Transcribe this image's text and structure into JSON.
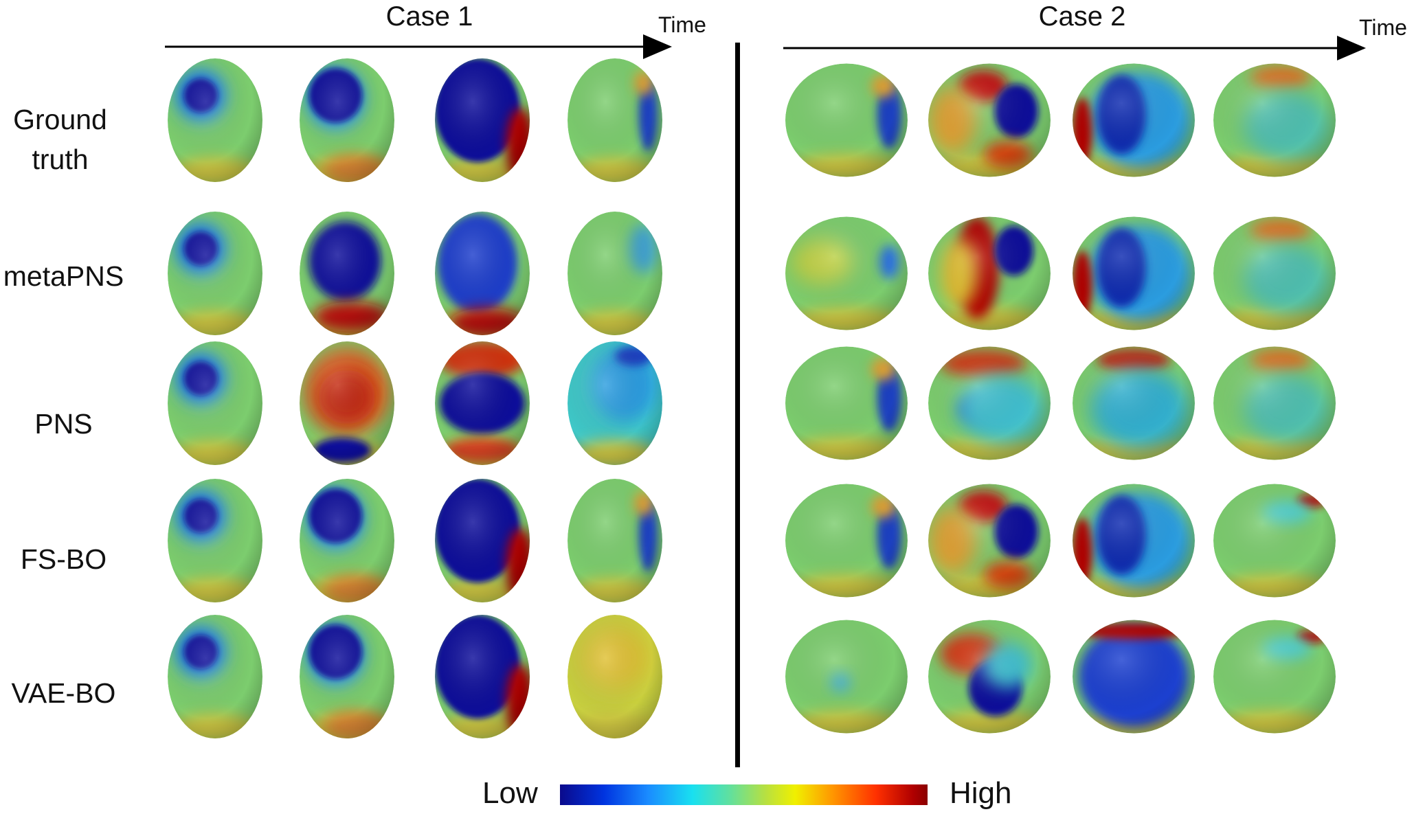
{
  "cases": [
    {
      "title": "Case 1",
      "time_label": "Time"
    },
    {
      "title": "Case 2",
      "time_label": "Time"
    }
  ],
  "rows": [
    {
      "label": "Ground truth"
    },
    {
      "label": "metaPNS"
    },
    {
      "label": "PNS"
    },
    {
      "label": "FS-BO"
    },
    {
      "label": "VAE-BO"
    }
  ],
  "colorbar": {
    "low_label": "Low",
    "high_label": "High",
    "colors": [
      "#0a0a8c",
      "#0034e0",
      "#1a8cff",
      "#19e0f0",
      "#5fe0a0",
      "#b8e040",
      "#f0f000",
      "#ff9800",
      "#ff3000",
      "#8a0000"
    ]
  },
  "heart_maps": {
    "case1": [
      [
        "ul-blob",
        "big-ul",
        "full-dark",
        "right-edge"
      ],
      [
        "ul-blob",
        "big-full",
        "full-mid",
        "faint"
      ],
      [
        "ul-blob",
        "red-warm",
        "red-top-band",
        "cyan-overall"
      ],
      [
        "ul-blob",
        "big-ul",
        "full-dark",
        "right-edge"
      ],
      [
        "ul-blob",
        "big-ul",
        "full-dark",
        "yellow-warm"
      ]
    ],
    "case2": [
      [
        "right-edge",
        "right-blob-red",
        "left-red-blue",
        "top-orange"
      ],
      [
        "right-faint",
        "diag-red-band",
        "left-red-blue",
        "top-orange"
      ],
      [
        "right-edge",
        "center-blue",
        "top-red-cyan",
        "top-orange"
      ],
      [
        "right-edge",
        "right-blob-red",
        "left-red-blue",
        "top-red-corner"
      ],
      [
        "center-cyan",
        "bottom-blob",
        "top-red-full-blue",
        "top-red-corner"
      ]
    ]
  }
}
